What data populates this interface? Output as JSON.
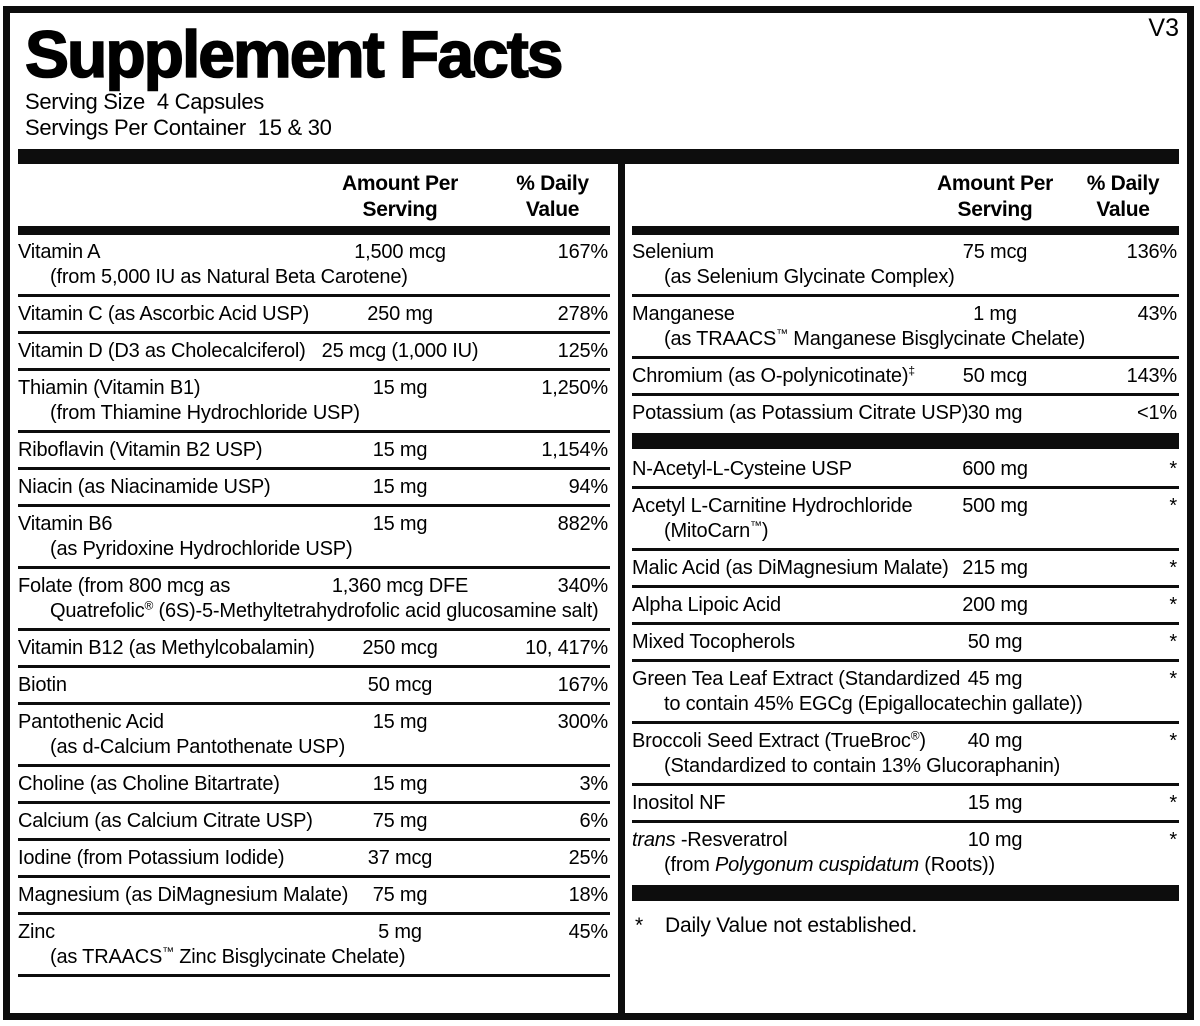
{
  "version": "V3",
  "title": "Supplement Facts",
  "serving": {
    "size_label": "Serving Size",
    "size_value": "4 Capsules",
    "per_container_label": "Servings Per Container",
    "per_container_value": "15 & 30"
  },
  "column_headers": {
    "amount_line1": "Amount Per",
    "amount_line2": "Serving",
    "dv_line1": "% Daily",
    "dv_line2": "Value"
  },
  "left_column": {
    "rows": [
      {
        "name": "Vitamin A",
        "sub": "(from 5,000 IU as Natural Beta Carotene)",
        "amount": "1,500 mcg",
        "dv": "167%"
      },
      {
        "name": "Vitamin C (as Ascorbic Acid USP)",
        "amount": "250 mg",
        "dv": "278%"
      },
      {
        "name": "Vitamin D (D3 as Cholecalciferol)",
        "amount": "25 mcg (1,000 IU)",
        "dv": "125%"
      },
      {
        "name": "Thiamin (Vitamin B1)",
        "sub": "(from Thiamine Hydrochloride USP)",
        "amount": "15 mg",
        "dv": "1,250%"
      },
      {
        "name": "Riboflavin (Vitamin B2 USP)",
        "amount": "15 mg",
        "dv": "1,154%"
      },
      {
        "name": "Niacin (as Niacinamide USP)",
        "amount": "15 mg",
        "dv": "94%"
      },
      {
        "name": "Vitamin B6",
        "sub": "(as Pyridoxine Hydrochloride USP)",
        "amount": "15 mg",
        "dv": "882%"
      },
      {
        "name": "Folate (from 800 mcg as",
        "sub": "Quatrefolic^®^ (6S)-5-Methyltetrahydrofolic acid glucosamine salt)",
        "amount": "1,360 mcg DFE",
        "dv": "340%"
      },
      {
        "name": "Vitamin B12 (as Methylcobalamin)",
        "amount": "250 mcg",
        "dv": "10, 417%"
      },
      {
        "name": "Biotin",
        "amount": "50 mcg",
        "dv": "167%"
      },
      {
        "name": "Pantothenic Acid",
        "sub": "(as d-Calcium Pantothenate USP)",
        "amount": "15 mg",
        "dv": "300%"
      },
      {
        "name": "Choline (as Choline Bitartrate)",
        "amount": "15 mg",
        "dv": "3%"
      },
      {
        "name": "Calcium (as Calcium Citrate USP)",
        "amount": "75 mg",
        "dv": "6%"
      },
      {
        "name": "Iodine (from Potassium Iodide)",
        "amount": "37 mcg",
        "dv": "25%"
      },
      {
        "name": "Magnesium (as DiMagnesium Malate)",
        "amount": "75 mg",
        "dv": "18%"
      },
      {
        "name": "Zinc",
        "sub": "(as TRAACS^™^ Zinc Bisglycinate Chelate)",
        "amount": "5 mg",
        "dv": "45%"
      }
    ]
  },
  "right_column": {
    "groups": [
      [
        {
          "name": "Selenium",
          "sub": "(as Selenium Glycinate Complex)",
          "amount": "75 mcg",
          "dv": "136%"
        },
        {
          "name": "Manganese",
          "sub": "(as TRAACS^™^ Manganese Bisglycinate Chelate)",
          "amount": "1 mg",
          "dv": "43%"
        },
        {
          "name": "Chromium (as O-polynicotinate)^‡^",
          "amount": "50 mcg",
          "dv": "143%"
        },
        {
          "name": "Potassium (as Potassium Citrate USP)",
          "amount": "30 mg",
          "dv": "<1%"
        }
      ],
      [
        {
          "name": "N-Acetyl-L-Cysteine USP",
          "amount": "600 mg",
          "dv": "*"
        },
        {
          "name": "Acetyl L-Carnitine Hydrochloride",
          "sub": "(MitoCarn^™^)",
          "amount": "500 mg",
          "dv": "*"
        },
        {
          "name": "Malic Acid (as DiMagnesium Malate)",
          "amount": "215 mg",
          "dv": "*"
        },
        {
          "name": "Alpha Lipoic Acid",
          "amount": "200 mg",
          "dv": "*"
        },
        {
          "name": "Mixed Tocopherols",
          "amount": "50 mg",
          "dv": "*"
        },
        {
          "name": "Green Tea Leaf Extract (Standardized",
          "sub": "to contain 45% EGCg (Epigallocatechin gallate))",
          "amount": "45 mg",
          "dv": "*"
        },
        {
          "name": "Broccoli Seed Extract (TrueBroc^®^)",
          "sub": "(Standardized to contain 13% Glucoraphanin)",
          "amount": "40 mg",
          "dv": "*"
        },
        {
          "name": "Inositol NF",
          "amount": "15 mg",
          "dv": "*"
        },
        {
          "name": "_trans_ -Resveratrol",
          "sub": "(from _Polygonum cuspidatum_ (Roots))",
          "amount": "10 mg",
          "dv": "*"
        }
      ]
    ],
    "footnote_marker": "*",
    "footnote_text": "Daily Value not established."
  }
}
